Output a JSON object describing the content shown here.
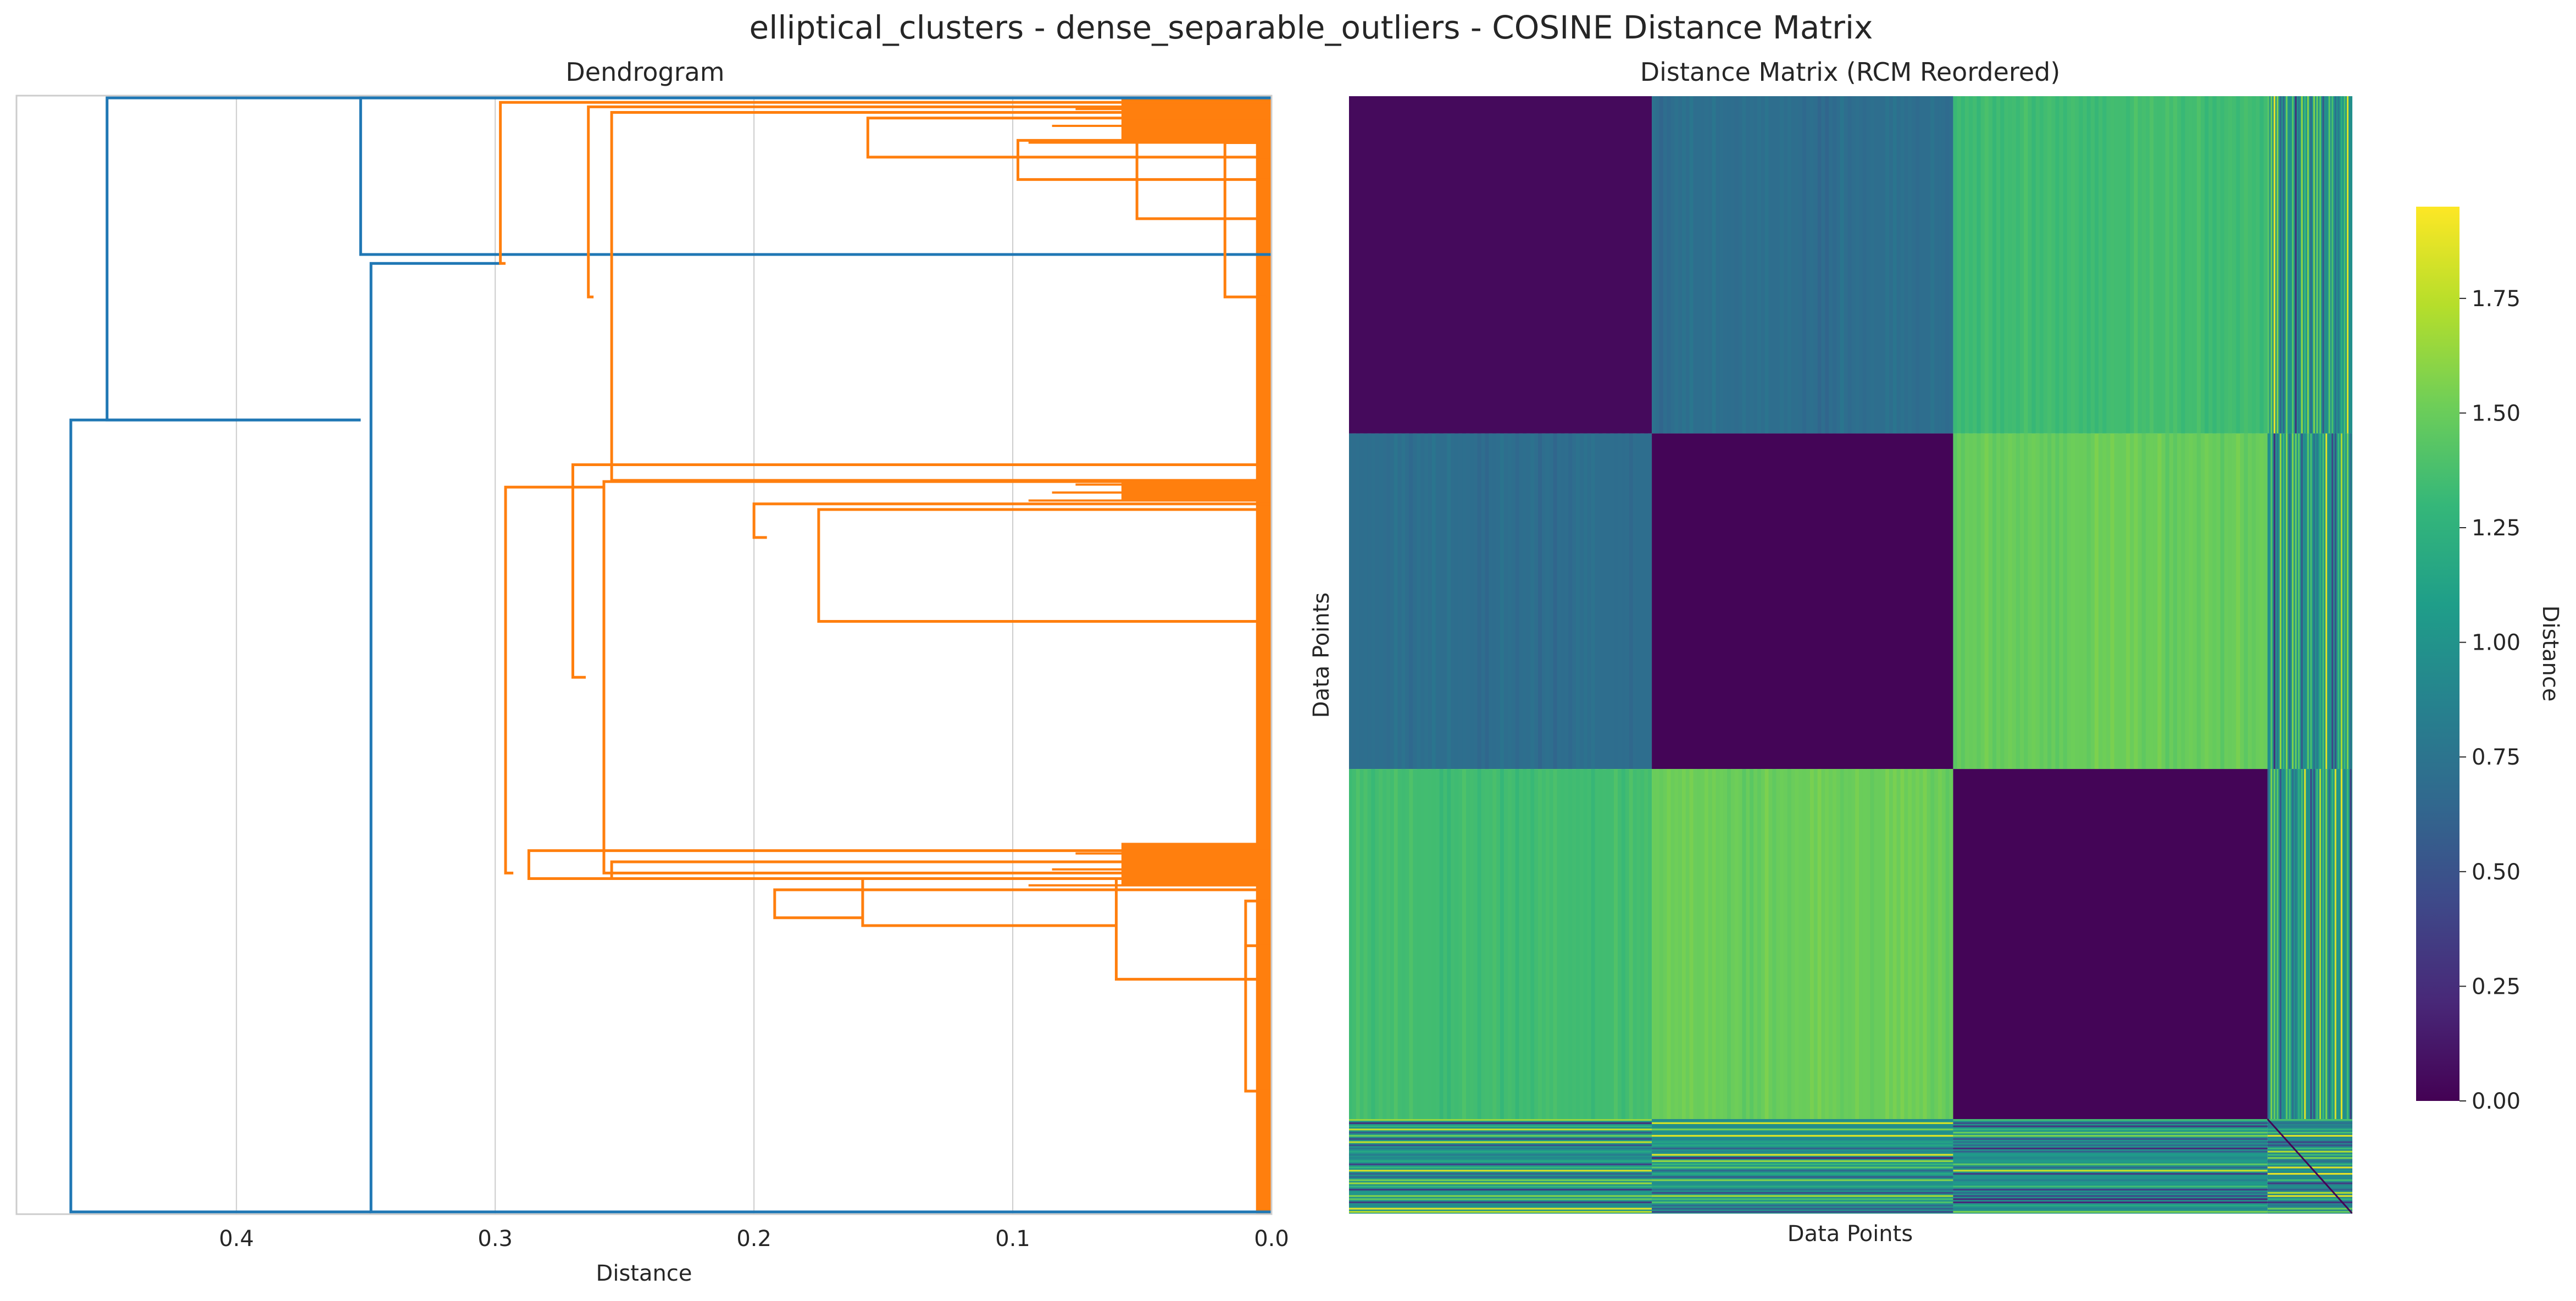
{
  "figure": {
    "title": "elliptical_clusters - dense_separable_outliers - COSINE Distance Matrix"
  },
  "colors": {
    "above_threshold": "#1f77b4",
    "cluster": "#ff7f0e",
    "grid": "#cccccc",
    "axes_edge": "#cccccc",
    "text": "#262626",
    "viridis": [
      "#440154",
      "#482878",
      "#3e4989",
      "#31688e",
      "#26828e",
      "#1f9e89",
      "#35b779",
      "#6ece58",
      "#b5de2b",
      "#fde725"
    ]
  },
  "chart_data": [
    {
      "type": "dendrogram",
      "title": "Dendrogram",
      "xlabel": "Distance",
      "ylabel": "",
      "orientation": "left",
      "xlim": [
        0.0,
        0.485
      ],
      "x_reversed": true,
      "xticks": [
        0.4,
        0.3,
        0.2,
        0.1,
        0.0
      ],
      "xtick_labels": [
        "0.4",
        "0.3",
        "0.2",
        "0.1",
        "0.0"
      ],
      "grid": "vertical",
      "leaf_range": [
        0,
        1000
      ],
      "links": [
        {
          "color": "above_threshold",
          "left": [
            0.0,
            2
          ],
          "top": [
            0.45,
            2
          ],
          "bottom": [
            0.45,
            290
          ],
          "right": [
            0.352,
            290
          ]
        },
        {
          "color": "above_threshold",
          "left": [
            0.0,
            2
          ],
          "top": [
            0.352,
            2
          ],
          "bottom": [
            0.352,
            142
          ],
          "right": [
            0.0,
            142
          ]
        },
        {
          "color": "above_threshold",
          "left": [
            0.352,
            290
          ],
          "top": [
            0.464,
            290
          ],
          "bottom": [
            0.464,
            998
          ],
          "right": [
            0.348,
            998
          ]
        },
        {
          "color": "above_threshold",
          "left": [
            0.298,
            150
          ],
          "top": [
            0.348,
            150
          ],
          "bottom": [
            0.348,
            998
          ],
          "right": [
            0.0,
            998
          ]
        },
        {
          "color": "cluster",
          "left": [
            0.0,
            6
          ],
          "top": [
            0.298,
            6
          ],
          "bottom": [
            0.298,
            150
          ],
          "right": [
            0.296,
            150
          ]
        },
        {
          "color": "cluster",
          "left": [
            0.258,
            350
          ],
          "top": [
            0.296,
            350
          ],
          "bottom": [
            0.296,
            695
          ],
          "right": [
            0.293,
            695
          ]
        },
        {
          "color": "cluster",
          "left": [
            0.0,
            10
          ],
          "top": [
            0.264,
            10
          ],
          "bottom": [
            0.264,
            180
          ],
          "right": [
            0.262,
            180
          ]
        },
        {
          "color": "cluster",
          "left": [
            0.0,
            15
          ],
          "top": [
            0.255,
            15
          ],
          "bottom": [
            0.255,
            344
          ],
          "right": [
            0.0,
            344
          ]
        },
        {
          "color": "cluster",
          "left": [
            0.0,
            20
          ],
          "top": [
            0.156,
            20
          ],
          "bottom": [
            0.156,
            55
          ],
          "right": [
            0.0,
            55
          ]
        },
        {
          "color": "cluster",
          "left": [
            0.0,
            40
          ],
          "top": [
            0.098,
            40
          ],
          "bottom": [
            0.098,
            75
          ],
          "right": [
            0.0,
            75
          ]
        },
        {
          "color": "cluster",
          "left": [
            0.0,
            40
          ],
          "top": [
            0.052,
            40
          ],
          "bottom": [
            0.052,
            110
          ],
          "right": [
            0.0,
            110
          ]
        },
        {
          "color": "cluster",
          "left": [
            0.0,
            42
          ],
          "top": [
            0.018,
            42
          ],
          "bottom": [
            0.018,
            180
          ],
          "right": [
            0.002,
            180
          ]
        },
        {
          "color": "cluster",
          "left": [
            0.0,
            330
          ],
          "top": [
            0.27,
            330
          ],
          "bottom": [
            0.27,
            520
          ],
          "right": [
            0.265,
            520
          ]
        },
        {
          "color": "cluster",
          "left": [
            0.0,
            345
          ],
          "top": [
            0.258,
            345
          ],
          "bottom": [
            0.258,
            695
          ],
          "right": [
            0.0,
            695
          ]
        },
        {
          "color": "cluster",
          "left": [
            0.0,
            365
          ],
          "top": [
            0.2,
            365
          ],
          "bottom": [
            0.2,
            395
          ],
          "right": [
            0.195,
            395
          ]
        },
        {
          "color": "cluster",
          "left": [
            0.0,
            370
          ],
          "top": [
            0.175,
            370
          ],
          "bottom": [
            0.175,
            470
          ],
          "right": [
            0.0,
            470
          ]
        },
        {
          "color": "cluster",
          "left": [
            0.0,
            675
          ],
          "top": [
            0.287,
            675
          ],
          "bottom": [
            0.287,
            700
          ],
          "right": [
            0.0,
            700
          ]
        },
        {
          "color": "cluster",
          "left": [
            0.0,
            685
          ],
          "top": [
            0.255,
            685
          ],
          "bottom": [
            0.255,
            700
          ],
          "right": [
            0.2,
            700
          ]
        },
        {
          "color": "cluster",
          "left": [
            0.0,
            710
          ],
          "top": [
            0.192,
            710
          ],
          "bottom": [
            0.192,
            735
          ],
          "right": [
            0.158,
            735
          ]
        },
        {
          "color": "cluster",
          "left": [
            0.0,
            700
          ],
          "top": [
            0.158,
            700
          ],
          "bottom": [
            0.158,
            742
          ],
          "right": [
            0.06,
            742
          ]
        },
        {
          "color": "cluster",
          "left": [
            0.0,
            700
          ],
          "top": [
            0.06,
            700
          ],
          "bottom": [
            0.06,
            790
          ],
          "right": [
            0.0,
            790
          ]
        },
        {
          "color": "cluster",
          "left": [
            0.0,
            720
          ],
          "top": [
            0.01,
            720
          ],
          "bottom": [
            0.01,
            790
          ],
          "right": [
            0.002,
            790
          ]
        },
        {
          "color": "cluster",
          "left": [
            0.0,
            760
          ],
          "top": [
            0.01,
            760
          ],
          "bottom": [
            0.01,
            890
          ],
          "right": [
            0.0,
            890
          ]
        }
      ],
      "dense_bands": [
        [
          2,
          42
        ],
        [
          343,
          362
        ],
        [
          668,
          706
        ]
      ],
      "leaf_comb_x": 0.006
    },
    {
      "type": "heatmap",
      "title": "Distance Matrix (RCM Reordered)",
      "xlabel": "Data Points",
      "ylabel": "Data Points",
      "colormap": "viridis",
      "n": 1000,
      "block_edges": [
        0,
        302,
        602,
        915,
        1000
      ],
      "block_means": [
        [
          0.05,
          0.7,
          1.35,
          1.0
        ],
        [
          0.7,
          0.02,
          1.5,
          1.0
        ],
        [
          1.35,
          1.5,
          0.02,
          1.0
        ],
        [
          1.0,
          1.0,
          1.0,
          0.9
        ]
      ],
      "colorbar": {
        "label": "Distance",
        "vmin": 0.0,
        "vmax": 1.95,
        "ticks": [
          0.0,
          0.25,
          0.5,
          0.75,
          1.0,
          1.25,
          1.5,
          1.75
        ],
        "tick_labels": [
          "0.00",
          "0.25",
          "0.50",
          "0.75",
          "1.00",
          "1.25",
          "1.50",
          "1.75"
        ]
      }
    }
  ]
}
